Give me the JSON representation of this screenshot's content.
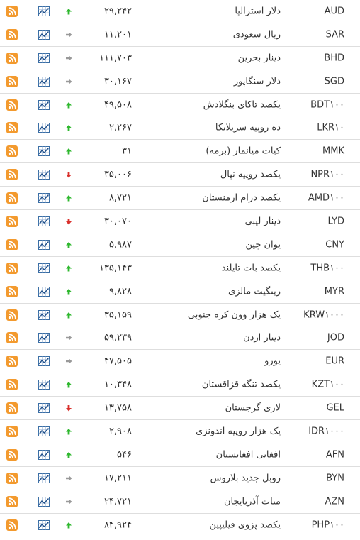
{
  "colors": {
    "rss": "#f39a2e",
    "chart_icon": "#3a6ea5",
    "trend_up": "#2eb82e",
    "trend_down": "#d9302c",
    "trend_flat": "#999999"
  },
  "rows": [
    {
      "code": "AUD",
      "name": "دلار استرالیا",
      "price": "۲۹,۲۴۲",
      "trend": "up"
    },
    {
      "code": "SAR",
      "name": "ریال سعودی",
      "price": "۱۱,۲۰۱",
      "trend": "flat"
    },
    {
      "code": "BHD",
      "name": "دینار بحرین",
      "price": "۱۱۱,۷۰۳",
      "trend": "flat"
    },
    {
      "code": "SGD",
      "name": "دلار سنگاپور",
      "price": "۳۰,۱۶۷",
      "trend": "flat"
    },
    {
      "code": "BDT۱۰۰",
      "name": "یکصد تاکای بنگلادش",
      "price": "۴۹,۵۰۸",
      "trend": "up"
    },
    {
      "code": "LKR۱۰",
      "name": "ده روپیه سریلانکا",
      "price": "۲,۲۶۷",
      "trend": "up"
    },
    {
      "code": "MMK",
      "name": "کیات میانمار (برمه)",
      "price": "۳۱",
      "trend": "up"
    },
    {
      "code": "NPR۱۰۰",
      "name": "یکصد روپیه نپال",
      "price": "۳۵,۰۰۶",
      "trend": "down"
    },
    {
      "code": "AMD۱۰۰",
      "name": "یکصد درام ارمنستان",
      "price": "۸,۷۲۱",
      "trend": "up"
    },
    {
      "code": "LYD",
      "name": "دینار لیبی",
      "price": "۳۰,۰۷۰",
      "trend": "down"
    },
    {
      "code": "CNY",
      "name": "یوان چین",
      "price": "۵,۹۸۷",
      "trend": "up"
    },
    {
      "code": "THB۱۰۰",
      "name": "یکصد بات تایلند",
      "price": "۱۳۵,۱۴۳",
      "trend": "up"
    },
    {
      "code": "MYR",
      "name": "رینگیت مالزی",
      "price": "۹,۸۲۸",
      "trend": "up"
    },
    {
      "code": "KRW۱۰۰۰",
      "name": "یک هزار وون کره جنوبی",
      "price": "۳۵,۱۵۹",
      "trend": "up"
    },
    {
      "code": "JOD",
      "name": "دینار اردن",
      "price": "۵۹,۲۳۹",
      "trend": "flat"
    },
    {
      "code": "EUR",
      "name": "یورو",
      "price": "۴۷,۵۰۵",
      "trend": "flat"
    },
    {
      "code": "KZT۱۰۰",
      "name": "یکصد تنگه قزاقستان",
      "price": "۱۰,۳۴۸",
      "trend": "up"
    },
    {
      "code": "GEL",
      "name": "لاری گرجستان",
      "price": "۱۳,۷۵۸",
      "trend": "down"
    },
    {
      "code": "IDR۱۰۰۰",
      "name": "یک هزار روپیه اندونزی",
      "price": "۲,۹۰۸",
      "trend": "up"
    },
    {
      "code": "AFN",
      "name": "افغانی افغانستان",
      "price": "۵۴۶",
      "trend": "up"
    },
    {
      "code": "BYN",
      "name": "روبل جدید بلاروس",
      "price": "۱۷,۲۱۱",
      "trend": "flat"
    },
    {
      "code": "AZN",
      "name": "منات آذربایجان",
      "price": "۲۴,۷۲۱",
      "trend": "flat"
    },
    {
      "code": "PHP۱۰۰",
      "name": "یکصد پزوی فیلیپین",
      "price": "۸۴,۹۲۴",
      "trend": "up"
    }
  ]
}
